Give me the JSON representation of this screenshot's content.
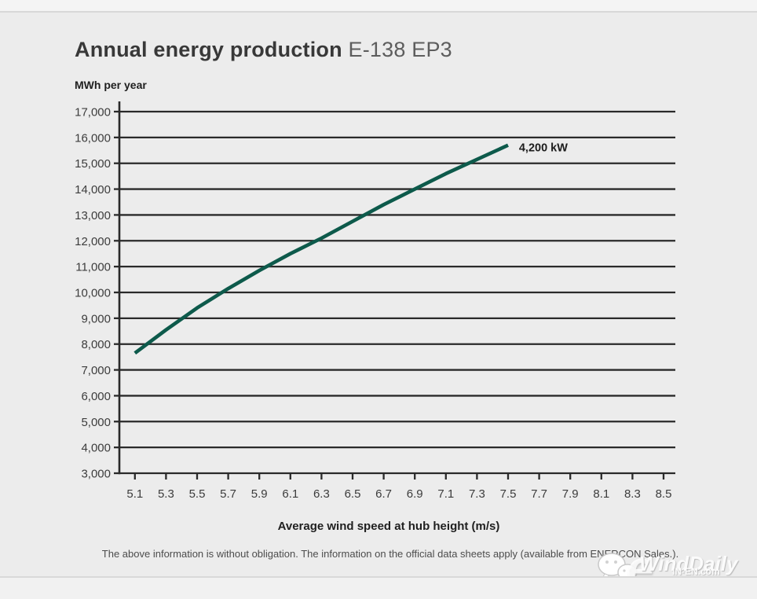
{
  "page": {
    "title_bold": "Annual energy production",
    "title_light": "E-138 EP3",
    "footnote": "The above information is without obligation. The information on the official data sheets apply (available from ENERCON Sales.)."
  },
  "watermark": {
    "brand": "WindDaily",
    "logo_letter": "e",
    "site": "IN-EN.com",
    "site_cn": "国际能源网",
    "icon": "wechat-bubbles-icon"
  },
  "chart_data": {
    "type": "line",
    "title": "Annual energy production",
    "subtitle": "E-138 EP3",
    "ylabel": "MWh per year",
    "xlabel": "Average wind speed at hub height (m/s)",
    "xlim": [
      5.0,
      8.58
    ],
    "ylim": [
      3000,
      17000
    ],
    "grid": "horizontal",
    "legend_position": "none",
    "axis_color": "#2a2a2a",
    "line_color": "#0d5a4b",
    "label_color": "#3c3c3c",
    "y_ticks": [
      3000,
      4000,
      5000,
      6000,
      7000,
      8000,
      9000,
      10000,
      11000,
      12000,
      13000,
      14000,
      15000,
      16000,
      17000
    ],
    "y_tick_labels": [
      "3,000",
      "4,000",
      "5,000",
      "6,000",
      "7,000",
      "8,000",
      "9,000",
      "10,000",
      "11,000",
      "12,000",
      "13,000",
      "14,000",
      "15,000",
      "16,000",
      "17,000"
    ],
    "x_ticks": [
      5.1,
      5.3,
      5.5,
      5.7,
      5.9,
      6.1,
      6.3,
      6.5,
      6.7,
      6.9,
      7.1,
      7.3,
      7.5,
      7.7,
      7.9,
      8.1,
      8.3,
      8.5
    ],
    "x_tick_labels": [
      "5.1",
      "5.3",
      "5.5",
      "5.7",
      "5.9",
      "6.1",
      "6.3",
      "6.5",
      "6.7",
      "6.9",
      "7.1",
      "7.3",
      "7.5",
      "7.7",
      "7.9",
      "8.1",
      "8.3",
      "8.5"
    ],
    "series": [
      {
        "name": "4,200 kW",
        "x": [
          5.1,
          5.3,
          5.5,
          5.7,
          5.9,
          6.1,
          6.3,
          6.5,
          6.7,
          6.9,
          7.1,
          7.3,
          7.5
        ],
        "y": [
          7650,
          8550,
          9400,
          10150,
          10850,
          11500,
          12100,
          12750,
          13400,
          14000,
          14600,
          15150,
          15700
        ]
      }
    ],
    "annotation": {
      "text": "4,200 kW",
      "x": 7.57,
      "y": 15550
    }
  }
}
